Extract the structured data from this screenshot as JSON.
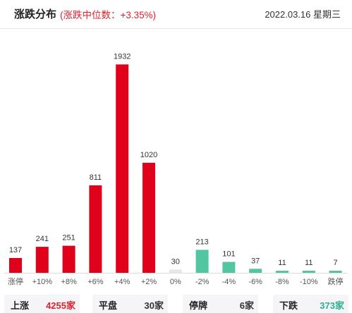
{
  "header": {
    "title": "涨跌分布",
    "median": "(涨跌中位数：+3.35%)",
    "date": "2022.03.16 星期三"
  },
  "colors": {
    "up": "#e0021b",
    "flat": "#e6e6e6",
    "down": "#52c6a0",
    "axis": "#dddddd"
  },
  "chart_data": {
    "type": "bar",
    "categories": [
      "涨停",
      "+10%",
      "+8%",
      "+6%",
      "+4%",
      "+2%",
      "0%",
      "-2%",
      "-4%",
      "-6%",
      "-8%",
      "-10%",
      "跌停"
    ],
    "values": [
      137,
      241,
      251,
      811,
      1932,
      1020,
      30,
      213,
      101,
      37,
      11,
      11,
      7
    ],
    "bar_colors": [
      "up",
      "up",
      "up",
      "up",
      "up",
      "up",
      "flat",
      "down",
      "down",
      "down",
      "down",
      "down",
      "down"
    ],
    "ylim": [
      0,
      2000
    ],
    "grid": false,
    "legend": "none"
  },
  "summary": {
    "up": {
      "label": "上涨",
      "count": "4255",
      "unit": "家"
    },
    "flat": {
      "label": "平盘",
      "count": "30",
      "unit": "家"
    },
    "halt": {
      "label": "停牌",
      "count": "6",
      "unit": "家"
    },
    "down": {
      "label": "下跌",
      "count": "373",
      "unit": "家"
    }
  }
}
